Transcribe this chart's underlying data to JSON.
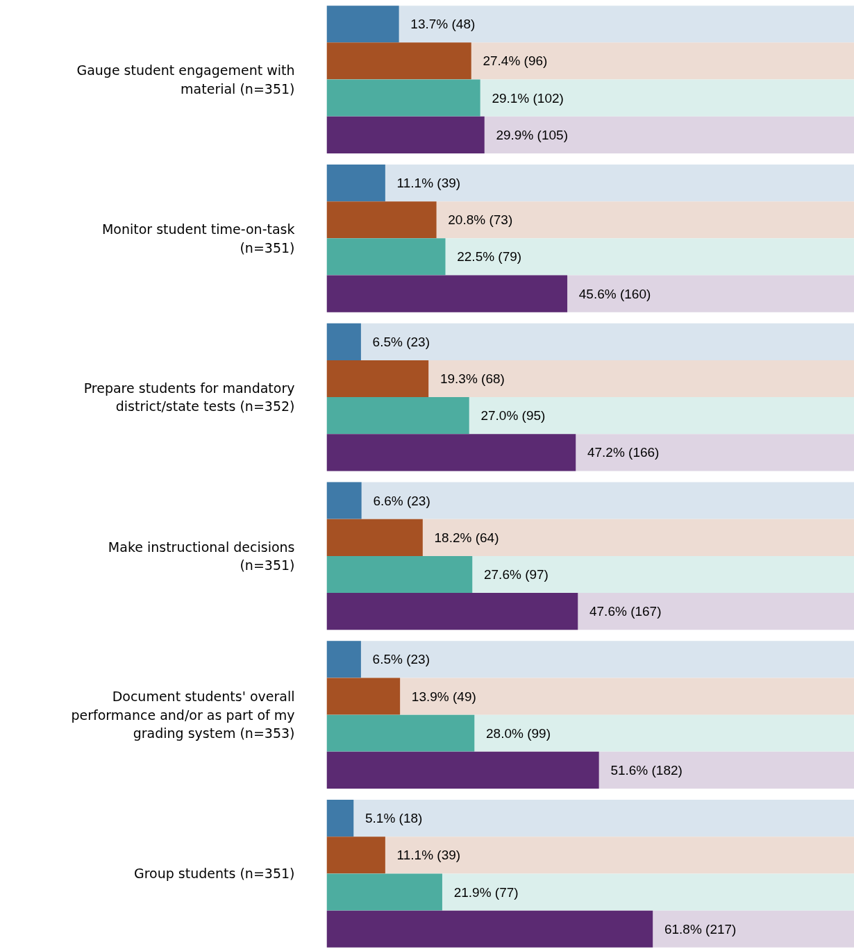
{
  "chart_data": {
    "type": "bar",
    "orientation": "horizontal",
    "xlim": [
      0,
      100
    ],
    "tick_labels": "y",
    "grid": false,
    "categories": [
      "Gauge student engagement with material (n=351)",
      "Monitor student time-on-task (n=351)",
      "Prepare students for mandatory district/state tests (n=352)",
      "Make instructional decisions (n=351)",
      "Document students' overall performance and/or as part of my grading system (n=353)",
      "Group students (n=351)"
    ],
    "series": [
      {
        "color": "#3f7aa8",
        "values": [
          13.7,
          11.1,
          6.5,
          6.6,
          6.5,
          5.1
        ],
        "value_labels": [
          "13.7% (48)",
          "11.1% (39)",
          "6.5% (23)",
          "6.6% (23)",
          "6.5% (23)",
          "5.1% (18)"
        ]
      },
      {
        "color": "#a65123",
        "values": [
          27.4,
          20.8,
          19.3,
          18.2,
          13.9,
          11.1
        ],
        "value_labels": [
          "27.4% (96)",
          "20.8% (73)",
          "19.3% (68)",
          "18.2% (64)",
          "13.9% (49)",
          "11.1% (39)"
        ]
      },
      {
        "color": "#4dada0",
        "values": [
          29.1,
          22.5,
          27.0,
          27.6,
          28.0,
          21.9
        ],
        "value_labels": [
          "29.1% (102)",
          "22.5% (79)",
          "27.0% (95)",
          "27.6% (97)",
          "28.0% (99)",
          "21.9% (77)"
        ]
      },
      {
        "color": "#5b2a72",
        "values": [
          29.9,
          45.6,
          47.2,
          47.6,
          51.6,
          61.8
        ],
        "value_labels": [
          "29.9% (105)",
          "45.6% (160)",
          "47.2% (166)",
          "47.6% (167)",
          "51.6% (182)",
          "61.8% (217)"
        ]
      }
    ]
  }
}
